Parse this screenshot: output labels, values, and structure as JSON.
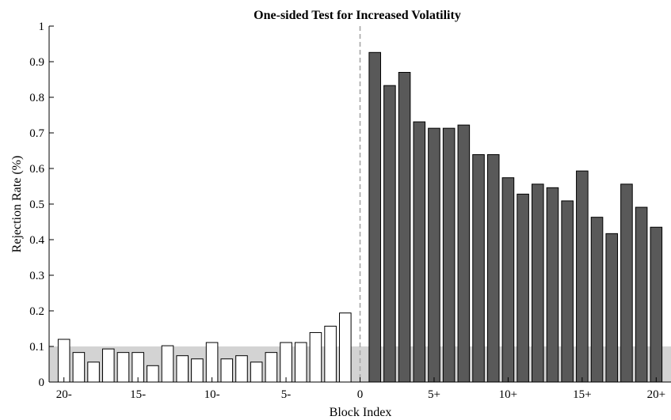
{
  "chart_data": {
    "type": "bar",
    "title": "One-sided Test for Increased Volatility",
    "xlabel": "Block Index",
    "ylabel": "Rejection Rate (%)",
    "ylim": [
      0,
      1
    ],
    "xlim": [
      -21,
      21
    ],
    "yticks": [
      "0",
      "0.1",
      "0.2",
      "0.3",
      "0.4",
      "0.5",
      "0.6",
      "0.7",
      "0.8",
      "0.9",
      "1"
    ],
    "xticks": [
      {
        "x": -20,
        "label": "20-"
      },
      {
        "x": -15,
        "label": "15-"
      },
      {
        "x": -10,
        "label": "10-"
      },
      {
        "x": -5,
        "label": "5-"
      },
      {
        "x": 0,
        "label": "0"
      },
      {
        "x": 5,
        "label": "5+"
      },
      {
        "x": 10,
        "label": "10+"
      },
      {
        "x": 15,
        "label": "15+"
      },
      {
        "x": 20,
        "label": "20+"
      }
    ],
    "significance_band": [
      0,
      0.1
    ],
    "divider_x": 0,
    "series": [
      {
        "x": [
          -20,
          -19,
          -18,
          -17,
          -16,
          -15,
          -14,
          -13,
          -12,
          -11,
          -10,
          -9,
          -8,
          -7,
          -6,
          -5,
          -4,
          -3,
          -2,
          -1
        ],
        "values": [
          0.12,
          0.083,
          0.056,
          0.093,
          0.083,
          0.083,
          0.046,
          0.102,
          0.074,
          0.065,
          0.111,
          0.065,
          0.074,
          0.056,
          0.083,
          0.111,
          0.111,
          0.139,
          0.157,
          0.194
        ],
        "color": "#ffffff"
      },
      {
        "x": [
          1,
          2,
          3,
          4,
          5,
          6,
          7,
          8,
          9,
          10,
          11,
          12,
          13,
          14,
          15,
          16,
          17,
          18,
          19,
          20
        ],
        "values": [
          0.926,
          0.833,
          0.87,
          0.731,
          0.713,
          0.713,
          0.722,
          0.639,
          0.639,
          0.574,
          0.528,
          0.556,
          0.546,
          0.509,
          0.593,
          0.463,
          0.417,
          0.556,
          0.491,
          0.435
        ],
        "color": "#595959"
      }
    ]
  }
}
